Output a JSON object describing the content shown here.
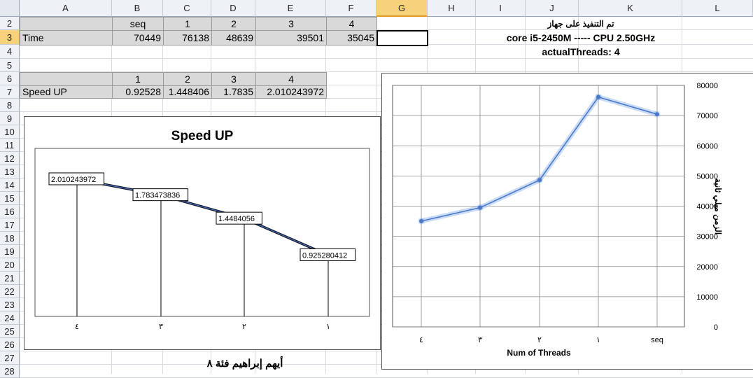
{
  "sheet": {
    "columns": [
      "A",
      "B",
      "C",
      "D",
      "E",
      "F",
      "G",
      "H",
      "I",
      "J",
      "K",
      "L"
    ],
    "rows": [
      "2",
      "3",
      "4",
      "5",
      "6",
      "7",
      "8",
      "9",
      "10",
      "11",
      "12",
      "13",
      "14",
      "15",
      "16",
      "17",
      "18",
      "19",
      "20",
      "21",
      "22",
      "23",
      "24",
      "25",
      "26",
      "27",
      "28"
    ],
    "selected_column": "G",
    "selected_row": "3",
    "time_table": {
      "headers": [
        "seq",
        "1",
        "2",
        "3",
        "4"
      ],
      "label": "Time",
      "values": [
        "70449",
        "76138",
        "48639",
        "39501",
        "35045"
      ]
    },
    "speedup_table": {
      "headers": [
        "1",
        "2",
        "3",
        "4"
      ],
      "label": "Speed UP",
      "values": [
        "0.92528",
        "1.448406",
        "1.7835",
        "2.010243972"
      ]
    },
    "notes": {
      "executed_on": "تم التنفيذ على جهاز",
      "cpu": "core i5-2450M ----- CPU 2.50GHz",
      "threads": "actualThreads: 4"
    },
    "author": "أيهم إبراهيم فئة ٨"
  },
  "chart_data": [
    {
      "type": "line",
      "title": "Speed UP",
      "categories": [
        "٤",
        "٣",
        "٢",
        "١"
      ],
      "values": [
        2.010243972,
        1.783473836,
        1.4484056,
        0.925280412
      ],
      "data_labels": [
        "2.010243972",
        "1.783473836",
        "1.4484056",
        "0.925280412"
      ],
      "xlabel": "",
      "ylabel": "",
      "grid": false,
      "drop_lines": true
    },
    {
      "type": "line",
      "title": "",
      "categories": [
        "٤",
        "٣",
        "٢",
        "١",
        "seq"
      ],
      "values": [
        35045,
        39501,
        48639,
        76138,
        70449
      ],
      "xlabel": "Num of Threads",
      "ylabel": "الزمن ميلي ثانية",
      "ylim": [
        0,
        80000
      ],
      "yticks": [
        "0",
        "10000",
        "20000",
        "30000",
        "40000",
        "50000",
        "60000",
        "70000",
        "80000"
      ],
      "y_axis_side": "right",
      "grid": true,
      "series_color": "#4a78c8"
    }
  ]
}
